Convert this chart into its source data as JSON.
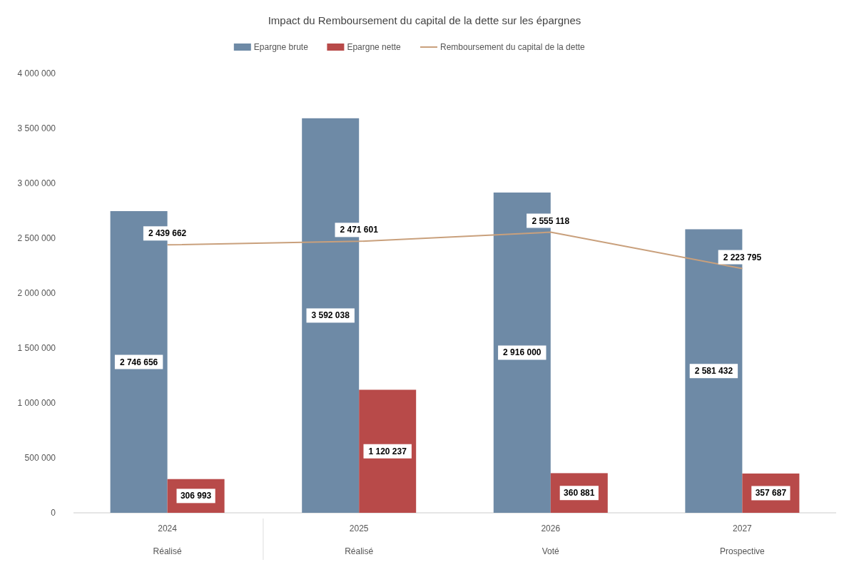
{
  "chart_data": {
    "type": "bar",
    "title": "Impact du Remboursement du capital de la dette sur les épargnes",
    "categories": [
      "2024\nRéalisé",
      "2025\nRéalisé",
      "2026\nVoté",
      "2027\nProspective"
    ],
    "series": [
      {
        "name": "Epargne brute",
        "color": "#6e8aa6",
        "values": [
          2746656,
          3592038,
          2916000,
          2581432
        ]
      },
      {
        "name": "Epargne nette",
        "color": "#b84a49",
        "values": [
          306993,
          1120237,
          360881,
          357687
        ]
      },
      {
        "name": "Remboursement du capital de la dette",
        "type": "line",
        "color": "#c9a07c",
        "values": [
          2439662,
          2471601,
          2555118,
          2223795
        ]
      }
    ],
    "ylim": [
      0,
      4000000
    ],
    "yticks": [
      0,
      {
        "value": 500000,
        "label": "500 000"
      },
      {
        "value": 1000000,
        "label": "1 000 000"
      },
      {
        "value": 1500000,
        "label": "1 500 000"
      },
      {
        "value": 2000000,
        "label": "2 000 000"
      },
      {
        "value": 2500000,
        "label": "2 500 000"
      },
      {
        "value": 3000000,
        "label": "3 000 000"
      },
      {
        "value": 3500000,
        "label": "3 500 000"
      },
      {
        "value": 4000000,
        "label": "4 000 000"
      }
    ],
    "data_labels": true,
    "legend": "top",
    "grid": false,
    "line_style": "solid"
  }
}
